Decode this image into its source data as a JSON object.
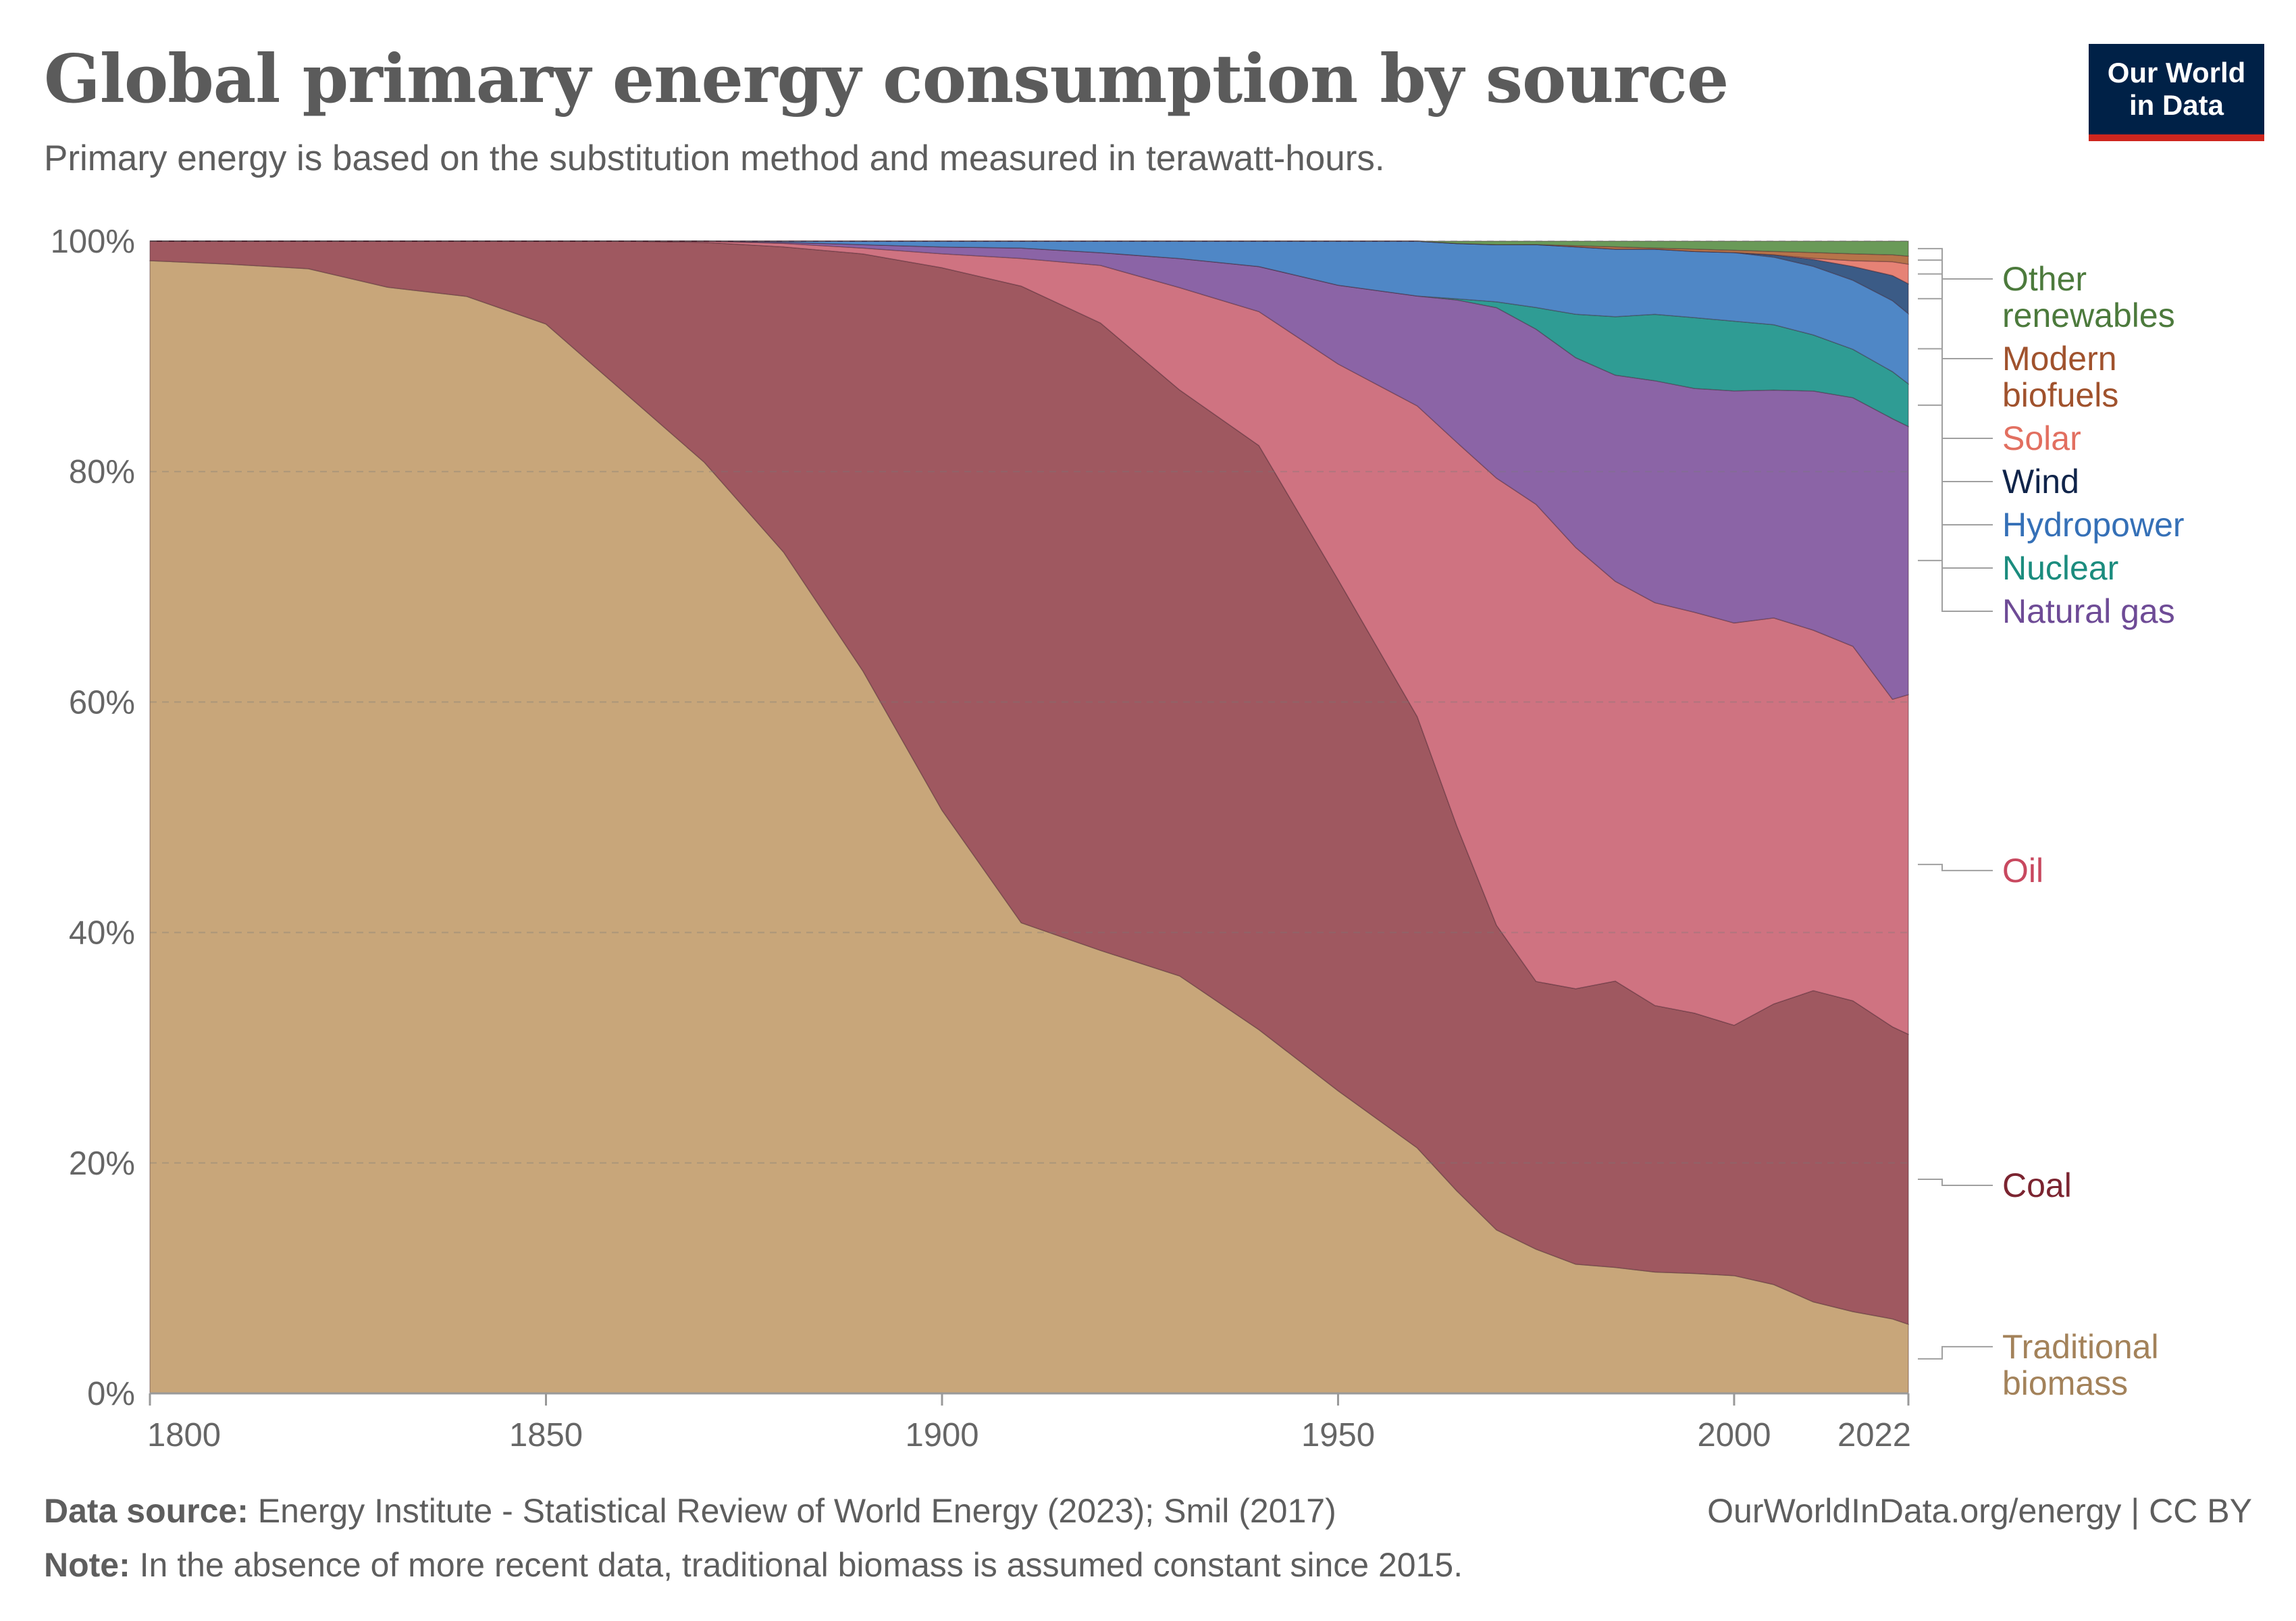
{
  "title": "Global primary energy consumption by source",
  "subtitle": "Primary energy is based on the substitution method and measured in terawatt-hours.",
  "logo": {
    "line1": "Our World",
    "line2": "in Data"
  },
  "footer": {
    "source_label": "Data source:",
    "source_text": " Energy Institute - Statistical Review of World Energy (2023); Smil (2017)",
    "note_label": "Note:",
    "note_text": " In the absence of more recent data, traditional biomass is assumed constant since 2015.",
    "credit": "OurWorldInData.org/energy | CC BY"
  },
  "chart_data": {
    "type": "area",
    "stacked": true,
    "normalized": "percent",
    "ylim": [
      0,
      100
    ],
    "yticks": [
      "0%",
      "20%",
      "40%",
      "60%",
      "80%",
      "100%"
    ],
    "xlim": [
      1800,
      2022
    ],
    "xticks": [
      "1800",
      "1850",
      "1900",
      "1950",
      "2000",
      "2022"
    ],
    "grid": "horizontal dashed",
    "legend": "right side labels",
    "x": [
      1800,
      1810,
      1820,
      1830,
      1840,
      1850,
      1860,
      1870,
      1880,
      1890,
      1900,
      1910,
      1920,
      1930,
      1940,
      1950,
      1960,
      1965,
      1970,
      1975,
      1980,
      1985,
      1990,
      1995,
      2000,
      2005,
      2010,
      2015,
      2020,
      2022
    ],
    "series": [
      {
        "name": "Traditional biomass",
        "color": "#c8a67a",
        "label_color": "#a3825a",
        "values": [
          98.3,
          98.0,
          97.6,
          96.0,
          95.2,
          92.8,
          86.8,
          80.8,
          73.0,
          62.2,
          50.4,
          40.8,
          38.4,
          35.9,
          31.5,
          26.1,
          21.0,
          17.2,
          14.0,
          12.6,
          11.3,
          11.0,
          10.6,
          10.5,
          10.3,
          9.5,
          8.0,
          7.1,
          6.5,
          6.0
        ]
      },
      {
        "name": "Coal",
        "color": "#9f5860",
        "label_color": "#7b2430",
        "values": [
          1.7,
          2.0,
          2.4,
          4.0,
          4.8,
          7.2,
          13.2,
          19.1,
          26.5,
          35.9,
          46.9,
          55.2,
          54.4,
          50.4,
          50.6,
          44.1,
          36.9,
          31.0,
          26.1,
          23.4,
          24.1,
          25.0,
          23.3,
          22.8,
          21.9,
          24.5,
          27.2,
          27.0,
          25.5,
          25.2
        ]
      },
      {
        "name": "Oil",
        "color": "#cf7381",
        "label_color": "#c8485f",
        "values": [
          0,
          0,
          0,
          0,
          0,
          0,
          0,
          0.1,
          0.3,
          0.5,
          1.2,
          2.4,
          5.0,
          8.8,
          11.6,
          18.6,
          26.6,
          32.6,
          38.3,
          41.7,
          38.6,
          34.9,
          35.2,
          35.1,
          35.2,
          33.7,
          31.5,
          30.8,
          28.6,
          29.5
        ]
      },
      {
        "name": "Natural gas",
        "color": "#8b64a6",
        "label_color": "#6e4b96",
        "values": [
          0,
          0,
          0,
          0,
          0,
          0,
          0,
          0,
          0.1,
          0.3,
          0.6,
          0.9,
          1.1,
          2.5,
          3.9,
          6.8,
          9.4,
          12.1,
          14.6,
          15.3,
          16.6,
          18.0,
          19.4,
          19.6,
          20.3,
          19.9,
          20.9,
          21.6,
          24.5,
          23.3
        ]
      },
      {
        "name": "Nuclear",
        "color": "#2f9c94",
        "label_color": "#1b8c7e",
        "values": [
          0,
          0,
          0,
          0,
          0,
          0,
          0,
          0,
          0,
          0,
          0,
          0,
          0,
          0,
          0,
          0,
          0,
          0.1,
          0.5,
          1.9,
          3.8,
          5.1,
          5.8,
          6.2,
          6.1,
          5.7,
          4.9,
          4.2,
          4.1,
          3.7
        ]
      },
      {
        "name": "Hydropower",
        "color": "#4f87c6",
        "label_color": "#3570b7",
        "values": [
          0,
          0,
          0,
          0,
          0,
          0,
          0,
          0,
          0.1,
          0.3,
          0.5,
          0.6,
          1.0,
          1.5,
          2.2,
          3.8,
          4.7,
          4.7,
          4.9,
          5.5,
          5.9,
          5.9,
          5.7,
          5.8,
          6.0,
          5.9,
          6.0,
          6.0,
          6.2,
          6.1
        ]
      },
      {
        "name": "Wind",
        "color": "#3b5b86",
        "label_color": "#10244a",
        "values": [
          0,
          0,
          0,
          0,
          0,
          0,
          0,
          0,
          0,
          0,
          0,
          0,
          0,
          0,
          0,
          0,
          0,
          0,
          0,
          0,
          0,
          0,
          0,
          0,
          0,
          0.2,
          0.6,
          1.2,
          2.2,
          2.6
        ]
      },
      {
        "name": "Solar",
        "color": "#e68275",
        "label_color": "#e26f60",
        "values": [
          0,
          0,
          0,
          0,
          0,
          0,
          0,
          0,
          0,
          0,
          0,
          0,
          0,
          0,
          0,
          0,
          0,
          0,
          0,
          0,
          0,
          0,
          0,
          0,
          0,
          0,
          0.1,
          0.5,
          1.2,
          1.7
        ]
      },
      {
        "name": "Modern biofuels",
        "color": "#b7744a",
        "label_color": "#a0522d",
        "values": [
          0,
          0,
          0,
          0,
          0,
          0,
          0,
          0,
          0,
          0,
          0,
          0,
          0,
          0,
          0,
          0,
          0,
          0,
          0,
          0,
          0.1,
          0.2,
          0.1,
          0.2,
          0.2,
          0.3,
          0.5,
          0.6,
          0.6,
          0.7
        ]
      },
      {
        "name": "Other renewables",
        "color": "#6a9a58",
        "label_color": "#4c7a3c",
        "values": [
          0,
          0,
          0,
          0,
          0,
          0,
          0,
          0,
          0,
          0,
          0,
          0,
          0,
          0,
          0,
          0,
          0,
          0.2,
          0.3,
          0.3,
          0.4,
          0.5,
          0.6,
          0.7,
          0.8,
          0.9,
          1.0,
          1.1,
          1.2,
          1.3
        ]
      }
    ]
  }
}
